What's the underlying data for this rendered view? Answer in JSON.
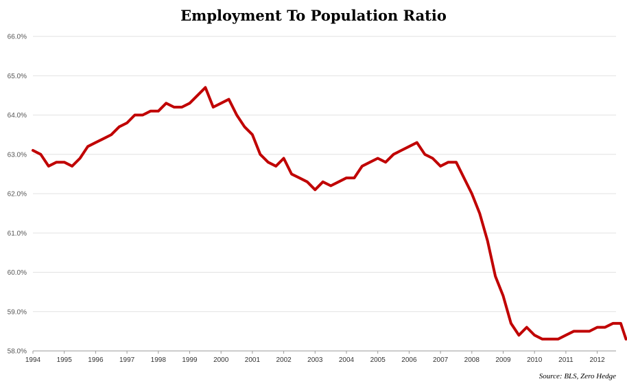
{
  "chart_data": {
    "type": "line",
    "title": "Employment To Population Ratio",
    "xlabel": "",
    "ylabel": "",
    "source": "Source: BLS, Zero Hedge",
    "ylim": [
      58.0,
      66.0
    ],
    "y_ticks": [
      "58.0%",
      "59.0%",
      "60.0%",
      "61.0%",
      "62.0%",
      "63.0%",
      "64.0%",
      "65.0%",
      "66.0%"
    ],
    "x_ticks": [
      "1994",
      "1995",
      "1996",
      "1997",
      "1998",
      "1999",
      "2000",
      "2001",
      "2002",
      "2003",
      "2004",
      "2005",
      "2006",
      "2007",
      "2008",
      "2009",
      "2010",
      "2011",
      "2012"
    ],
    "grid": true,
    "legend": "none",
    "line_color": "#c00000",
    "series": [
      {
        "x": [
          "1994-01",
          "1994-04",
          "1994-07",
          "1994-10",
          "1995-01",
          "1995-04",
          "1995-07",
          "1995-10",
          "1996-01",
          "1996-04",
          "1996-07",
          "1996-10",
          "1997-01",
          "1997-04",
          "1997-07",
          "1997-10",
          "1998-01",
          "1998-04",
          "1998-07",
          "1998-10",
          "1999-01",
          "1999-04",
          "1999-07",
          "1999-10",
          "2000-01",
          "2000-04",
          "2000-07",
          "2000-10",
          "2001-01",
          "2001-04",
          "2001-07",
          "2001-10",
          "2002-01",
          "2002-04",
          "2002-07",
          "2002-10",
          "2003-01",
          "2003-04",
          "2003-07",
          "2003-10",
          "2004-01",
          "2004-04",
          "2004-07",
          "2004-10",
          "2005-01",
          "2005-04",
          "2005-07",
          "2005-10",
          "2006-01",
          "2006-04",
          "2006-07",
          "2006-10",
          "2007-01",
          "2007-04",
          "2007-07",
          "2007-10",
          "2008-01",
          "2008-04",
          "2008-07",
          "2008-10",
          "2009-01",
          "2009-04",
          "2009-07",
          "2009-10",
          "2010-01",
          "2010-04",
          "2010-07",
          "2010-10",
          "2011-01",
          "2011-04",
          "2011-07",
          "2011-10",
          "2012-01",
          "2012-04",
          "2012-07",
          "2012-10",
          "2012-12"
        ],
        "values": [
          63.1,
          63.0,
          62.7,
          62.8,
          62.8,
          62.7,
          62.9,
          63.2,
          63.3,
          63.4,
          63.5,
          63.7,
          63.8,
          64.0,
          64.0,
          64.1,
          64.1,
          64.3,
          64.2,
          64.2,
          64.3,
          64.5,
          64.7,
          64.2,
          64.3,
          64.4,
          64.0,
          63.7,
          63.5,
          63.0,
          62.8,
          62.7,
          62.9,
          62.5,
          62.4,
          62.3,
          62.1,
          62.3,
          62.2,
          62.3,
          62.4,
          62.4,
          62.7,
          62.8,
          62.9,
          62.8,
          63.0,
          63.1,
          63.2,
          63.3,
          63.0,
          62.9,
          62.7,
          62.8,
          62.8,
          62.4,
          62.0,
          61.5,
          60.8,
          59.9,
          59.4,
          58.7,
          58.4,
          58.6,
          58.4,
          58.3,
          58.3,
          58.3,
          58.4,
          58.5,
          58.5,
          58.5,
          58.6,
          58.6,
          58.7,
          58.7,
          58.3
        ]
      }
    ]
  }
}
